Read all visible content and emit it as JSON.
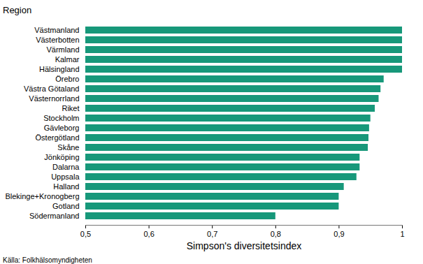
{
  "chart_data": {
    "type": "bar",
    "orientation": "horizontal",
    "title": "Region",
    "x_label": "Simpson's diversitetsindex",
    "caption": "Källa: Folkhälsomyndigheten",
    "categories": [
      "Västmanland",
      "Västerbotten",
      "Värmland",
      "Kalmar",
      "Hälsingland",
      "Örebro",
      "Västra Götaland",
      "Västernorrland",
      "Riket",
      "Stockholm",
      "Gävleborg",
      "Östergötland",
      "Skåne",
      "Jönköping",
      "Dalarna",
      "Uppsala",
      "Halland",
      "Blekinge+Kronogberg",
      "Gotland",
      "Södermanland"
    ],
    "values": [
      1.0,
      1.0,
      1.0,
      1.0,
      1.0,
      0.971,
      0.966,
      0.963,
      0.957,
      0.95,
      0.948,
      0.947,
      0.946,
      0.933,
      0.933,
      0.928,
      0.908,
      0.9,
      0.9,
      0.8
    ],
    "color": "#17987a",
    "xlim": [
      0.5,
      1
    ],
    "xticks": [
      {
        "value": 0.5,
        "label": "0,5"
      },
      {
        "value": 0.6,
        "label": "0,6"
      },
      {
        "value": 0.7,
        "label": "0,7"
      },
      {
        "value": 0.8,
        "label": "0,8"
      },
      {
        "value": 0.9,
        "label": "0,9"
      },
      1
    ],
    "grid": false
  }
}
